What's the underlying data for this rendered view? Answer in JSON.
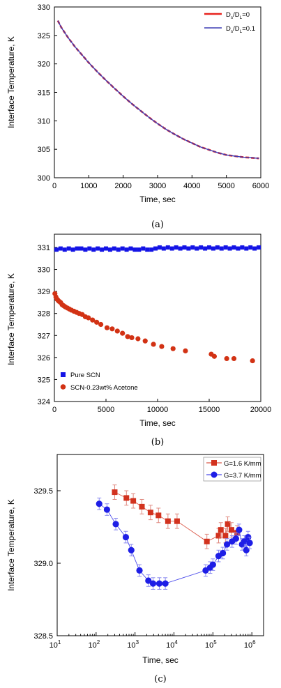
{
  "chart_data": [
    {
      "type": "line",
      "caption": "(a)",
      "xlabel": "Time, sec",
      "ylabel": "Interface Temperature, K",
      "xlim": [
        0,
        6000
      ],
      "ylim": [
        300,
        330
      ],
      "xticks": [
        "0",
        "1000",
        "2000",
        "3000",
        "4000",
        "5000",
        "6000"
      ],
      "yticks": [
        "300",
        "305",
        "310",
        "315",
        "320",
        "325",
        "330"
      ],
      "legend_position": "top-right",
      "series": [
        {
          "name": "Ds/DL=0",
          "color": "#e8231e",
          "dashed": true,
          "x": [
            100,
            200,
            400,
            600,
            800,
            1000,
            1250,
            1500,
            1750,
            2000,
            2250,
            2500,
            2750,
            3000,
            3250,
            3500,
            3750,
            4000,
            4250,
            4500,
            4750,
            5000,
            5250,
            5500,
            5750,
            5950
          ],
          "y": [
            327.6,
            326.4,
            324.6,
            323.0,
            321.6,
            320.2,
            318.6,
            317.1,
            315.7,
            314.3,
            313.0,
            311.8,
            310.6,
            309.5,
            308.5,
            307.6,
            306.8,
            306.1,
            305.4,
            304.9,
            304.4,
            304.0,
            303.8,
            303.6,
            303.5,
            303.4
          ]
        },
        {
          "name": "Ds/DL=0.1",
          "color": "#3c3cb4",
          "dashed": false,
          "x": [
            100,
            200,
            400,
            600,
            800,
            1000,
            1250,
            1500,
            1750,
            2000,
            2250,
            2500,
            2750,
            3000,
            3250,
            3500,
            3750,
            4000,
            4250,
            4500,
            4750,
            5000,
            5250,
            5500,
            5750,
            5950
          ],
          "y": [
            327.6,
            326.4,
            324.6,
            323.0,
            321.6,
            320.2,
            318.6,
            317.1,
            315.7,
            314.3,
            313.0,
            311.8,
            310.6,
            309.5,
            308.5,
            307.6,
            306.8,
            306.1,
            305.4,
            304.9,
            304.4,
            304.0,
            303.8,
            303.6,
            303.5,
            303.4
          ]
        }
      ]
    },
    {
      "type": "scatter",
      "caption": "(b)",
      "xlabel": "Time, sec",
      "ylabel": "Interface Temperature, K",
      "xlim": [
        0,
        20000
      ],
      "ylim": [
        324,
        331.6
      ],
      "xticks": [
        "0",
        "5000",
        "10000",
        "15000",
        "20000"
      ],
      "yticks": [
        "324",
        "325",
        "326",
        "327",
        "328",
        "329",
        "330",
        "331"
      ],
      "legend_position": "bottom-left",
      "series": [
        {
          "name": "Pure SCN",
          "color": "#1414e6",
          "marker": "square",
          "x": [
            200,
            600,
            1000,
            1400,
            1800,
            2200,
            2600,
            3000,
            3400,
            3800,
            4200,
            4600,
            5000,
            5400,
            5800,
            6200,
            6600,
            7000,
            7400,
            7800,
            8200,
            8600,
            9000,
            9400,
            9800,
            10200,
            10600,
            11000,
            11400,
            11800,
            12200,
            12600,
            13000,
            13400,
            13800,
            14200,
            14600,
            15000,
            15400,
            15800,
            16200,
            16600,
            17000,
            17400,
            17800,
            18200,
            18600,
            19000,
            19400,
            19800
          ],
          "y": [
            330.9,
            330.95,
            330.9,
            330.95,
            330.9,
            330.95,
            330.95,
            330.9,
            330.95,
            330.9,
            330.95,
            330.9,
            330.95,
            330.9,
            330.95,
            330.9,
            330.95,
            330.9,
            330.95,
            330.9,
            330.9,
            330.95,
            330.9,
            330.9,
            330.95,
            331.0,
            330.95,
            331.0,
            330.95,
            331.0,
            330.95,
            331.0,
            330.95,
            331.0,
            330.95,
            331.0,
            330.95,
            331.0,
            330.95,
            331.0,
            330.95,
            331.0,
            330.95,
            331.0,
            330.95,
            331.0,
            330.95,
            331.0,
            330.95,
            331.0
          ]
        },
        {
          "name": "SCN-0.23wt% Acetone",
          "color": "#d23214",
          "marker": "circle",
          "x": [
            50,
            150,
            250,
            350,
            450,
            600,
            750,
            900,
            1050,
            1250,
            1450,
            1650,
            1900,
            2150,
            2400,
            2700,
            3000,
            3300,
            3700,
            4100,
            4500,
            5100,
            5600,
            6100,
            6600,
            7100,
            7500,
            8100,
            8800,
            9600,
            10400,
            11500,
            12700,
            15200,
            15500,
            16700,
            17400,
            19200
          ],
          "y": [
            328.9,
            328.75,
            328.65,
            328.6,
            328.55,
            328.5,
            328.4,
            328.35,
            328.3,
            328.25,
            328.2,
            328.15,
            328.1,
            328.05,
            328.0,
            327.95,
            327.85,
            327.8,
            327.7,
            327.6,
            327.5,
            327.35,
            327.3,
            327.2,
            327.1,
            326.95,
            326.9,
            326.85,
            326.75,
            326.6,
            326.5,
            326.4,
            326.3,
            326.15,
            326.05,
            325.95,
            325.95,
            325.85
          ]
        }
      ]
    },
    {
      "type": "line",
      "caption": "(c)",
      "xlabel": "Time, sec",
      "ylabel": "Interface Temperature, K",
      "xscale": "log",
      "xlim": [
        10,
        2000000
      ],
      "ylim": [
        328.5,
        329.75
      ],
      "xtick_base": "10",
      "xtick_exponents": [
        "1",
        "2",
        "3",
        "4",
        "5",
        "6"
      ],
      "yticks": [
        "328.5",
        "329.0",
        "329.5"
      ],
      "legend_position": "top-right",
      "series": [
        {
          "name": "G=1.6 K/mm",
          "color": "#d2321e",
          "marker": "square",
          "x": [
            300,
            600,
            900,
            1500,
            2500,
            4000,
            7000,
            12000,
            70000,
            140000,
            160000,
            210000,
            240000,
            300000,
            420000
          ],
          "y": [
            329.49,
            329.45,
            329.43,
            329.39,
            329.35,
            329.33,
            329.29,
            329.29,
            329.15,
            329.19,
            329.23,
            329.19,
            329.27,
            329.23,
            329.21
          ],
          "err": [
            0.05,
            0.05,
            0.05,
            0.05,
            0.05,
            0.05,
            0.05,
            0.05,
            0.05,
            0.05,
            0.05,
            0.05,
            0.05,
            0.05,
            0.05
          ]
        },
        {
          "name": "G=3.7 K/mm",
          "color": "#1e1ee6",
          "marker": "circle",
          "x": [
            120,
            190,
            320,
            580,
            800,
            1300,
            2200,
            2900,
            4200,
            6000,
            65000,
            85000,
            100000,
            140000,
            180000,
            230000,
            310000,
            390000,
            470000,
            560000,
            640000,
            720000,
            800000,
            880000
          ],
          "y": [
            329.41,
            329.37,
            329.27,
            329.18,
            329.09,
            328.95,
            328.88,
            328.86,
            328.86,
            328.86,
            328.95,
            328.97,
            328.99,
            329.05,
            329.07,
            329.13,
            329.15,
            329.17,
            329.23,
            329.13,
            329.15,
            329.09,
            329.18,
            329.14
          ],
          "err": [
            0.04,
            0.04,
            0.04,
            0.04,
            0.04,
            0.04,
            0.04,
            0.04,
            0.04,
            0.04,
            0.04,
            0.04,
            0.04,
            0.04,
            0.04,
            0.04,
            0.04,
            0.04,
            0.04,
            0.04,
            0.04,
            0.04,
            0.04,
            0.04
          ]
        }
      ]
    }
  ],
  "legend_a": {
    "s1_main": "D",
    "s1_sub1": "s",
    "s1_mid": "/D",
    "s1_sub2": "L",
    "s1_tail": "=0",
    "s2_main": "D",
    "s2_sub1": "s",
    "s2_mid": "/D",
    "s2_sub2": "L",
    "s2_tail": "=0.1"
  }
}
